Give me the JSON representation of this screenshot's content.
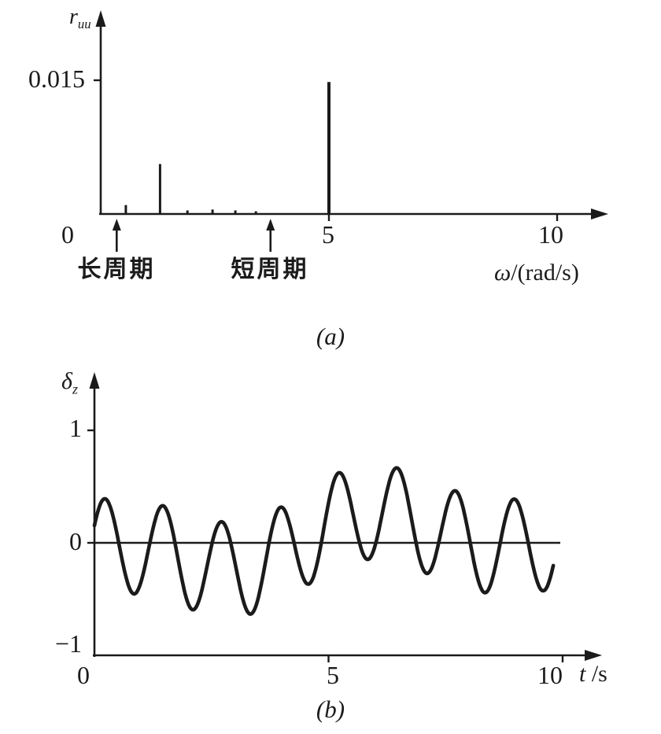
{
  "page": {
    "bg": "#ffffff",
    "ink": "#1b1b1b"
  },
  "captions": {
    "a": "(a)",
    "b": "(b)"
  },
  "chart_data": [
    {
      "id": "input-power-spectrum",
      "type": "stem",
      "title": "",
      "ylabel": {
        "base": "r",
        "sub": "uu"
      },
      "xlabel": {
        "symbol": "ω",
        "rest": "/(rad/s)"
      },
      "origin_label": "0",
      "xlim": [
        0,
        11
      ],
      "ylim": [
        0,
        0.019
      ],
      "x_ticks": [
        5,
        10
      ],
      "x_tick_labels": [
        "5",
        "10"
      ],
      "y_ticks": [
        0.015
      ],
      "y_tick_labels": [
        "0.015"
      ],
      "grid": false,
      "stems": [
        {
          "x": 0.55,
          "h": 0.001
        },
        {
          "x": 1.3,
          "h": 0.0056
        },
        {
          "x": 1.9,
          "h": 0.0004
        },
        {
          "x": 2.45,
          "h": 0.0005
        },
        {
          "x": 2.95,
          "h": 0.0004
        },
        {
          "x": 3.4,
          "h": 0.0003
        },
        {
          "x": 5.0,
          "h": 0.0148
        }
      ],
      "annotations": [
        {
          "x": 0.35,
          "label": "长周期"
        },
        {
          "x": 3.72,
          "label": "短周期"
        }
      ]
    },
    {
      "id": "elevator-deflection-time-history",
      "type": "line",
      "title": "",
      "ylabel": {
        "base": "δ",
        "sub": "z"
      },
      "xlabel": {
        "symbol": "t",
        "rest": " /s"
      },
      "xlim": [
        0,
        10.8
      ],
      "ylim": [
        -1,
        1.4
      ],
      "x_ticks": [
        0,
        5,
        10
      ],
      "x_tick_labels": [
        "0",
        "5",
        "10"
      ],
      "y_ticks": [
        1,
        0,
        -1
      ],
      "y_tick_labels": [
        "1",
        "0",
        "−1"
      ],
      "grid": false,
      "zero_line": true,
      "signal": {
        "model": "sum_of_sines",
        "t_start": 0,
        "t_end": 9.8,
        "step": 0.02,
        "components": [
          {
            "amplitude": 0.18,
            "omega": 0.63,
            "phase": -2.65
          },
          {
            "amplitude": 0.12,
            "omega": 1.3,
            "phase": 0.42
          },
          {
            "amplitude": 0.42,
            "omega": 5.03,
            "phase": 0.47
          }
        ]
      }
    }
  ]
}
